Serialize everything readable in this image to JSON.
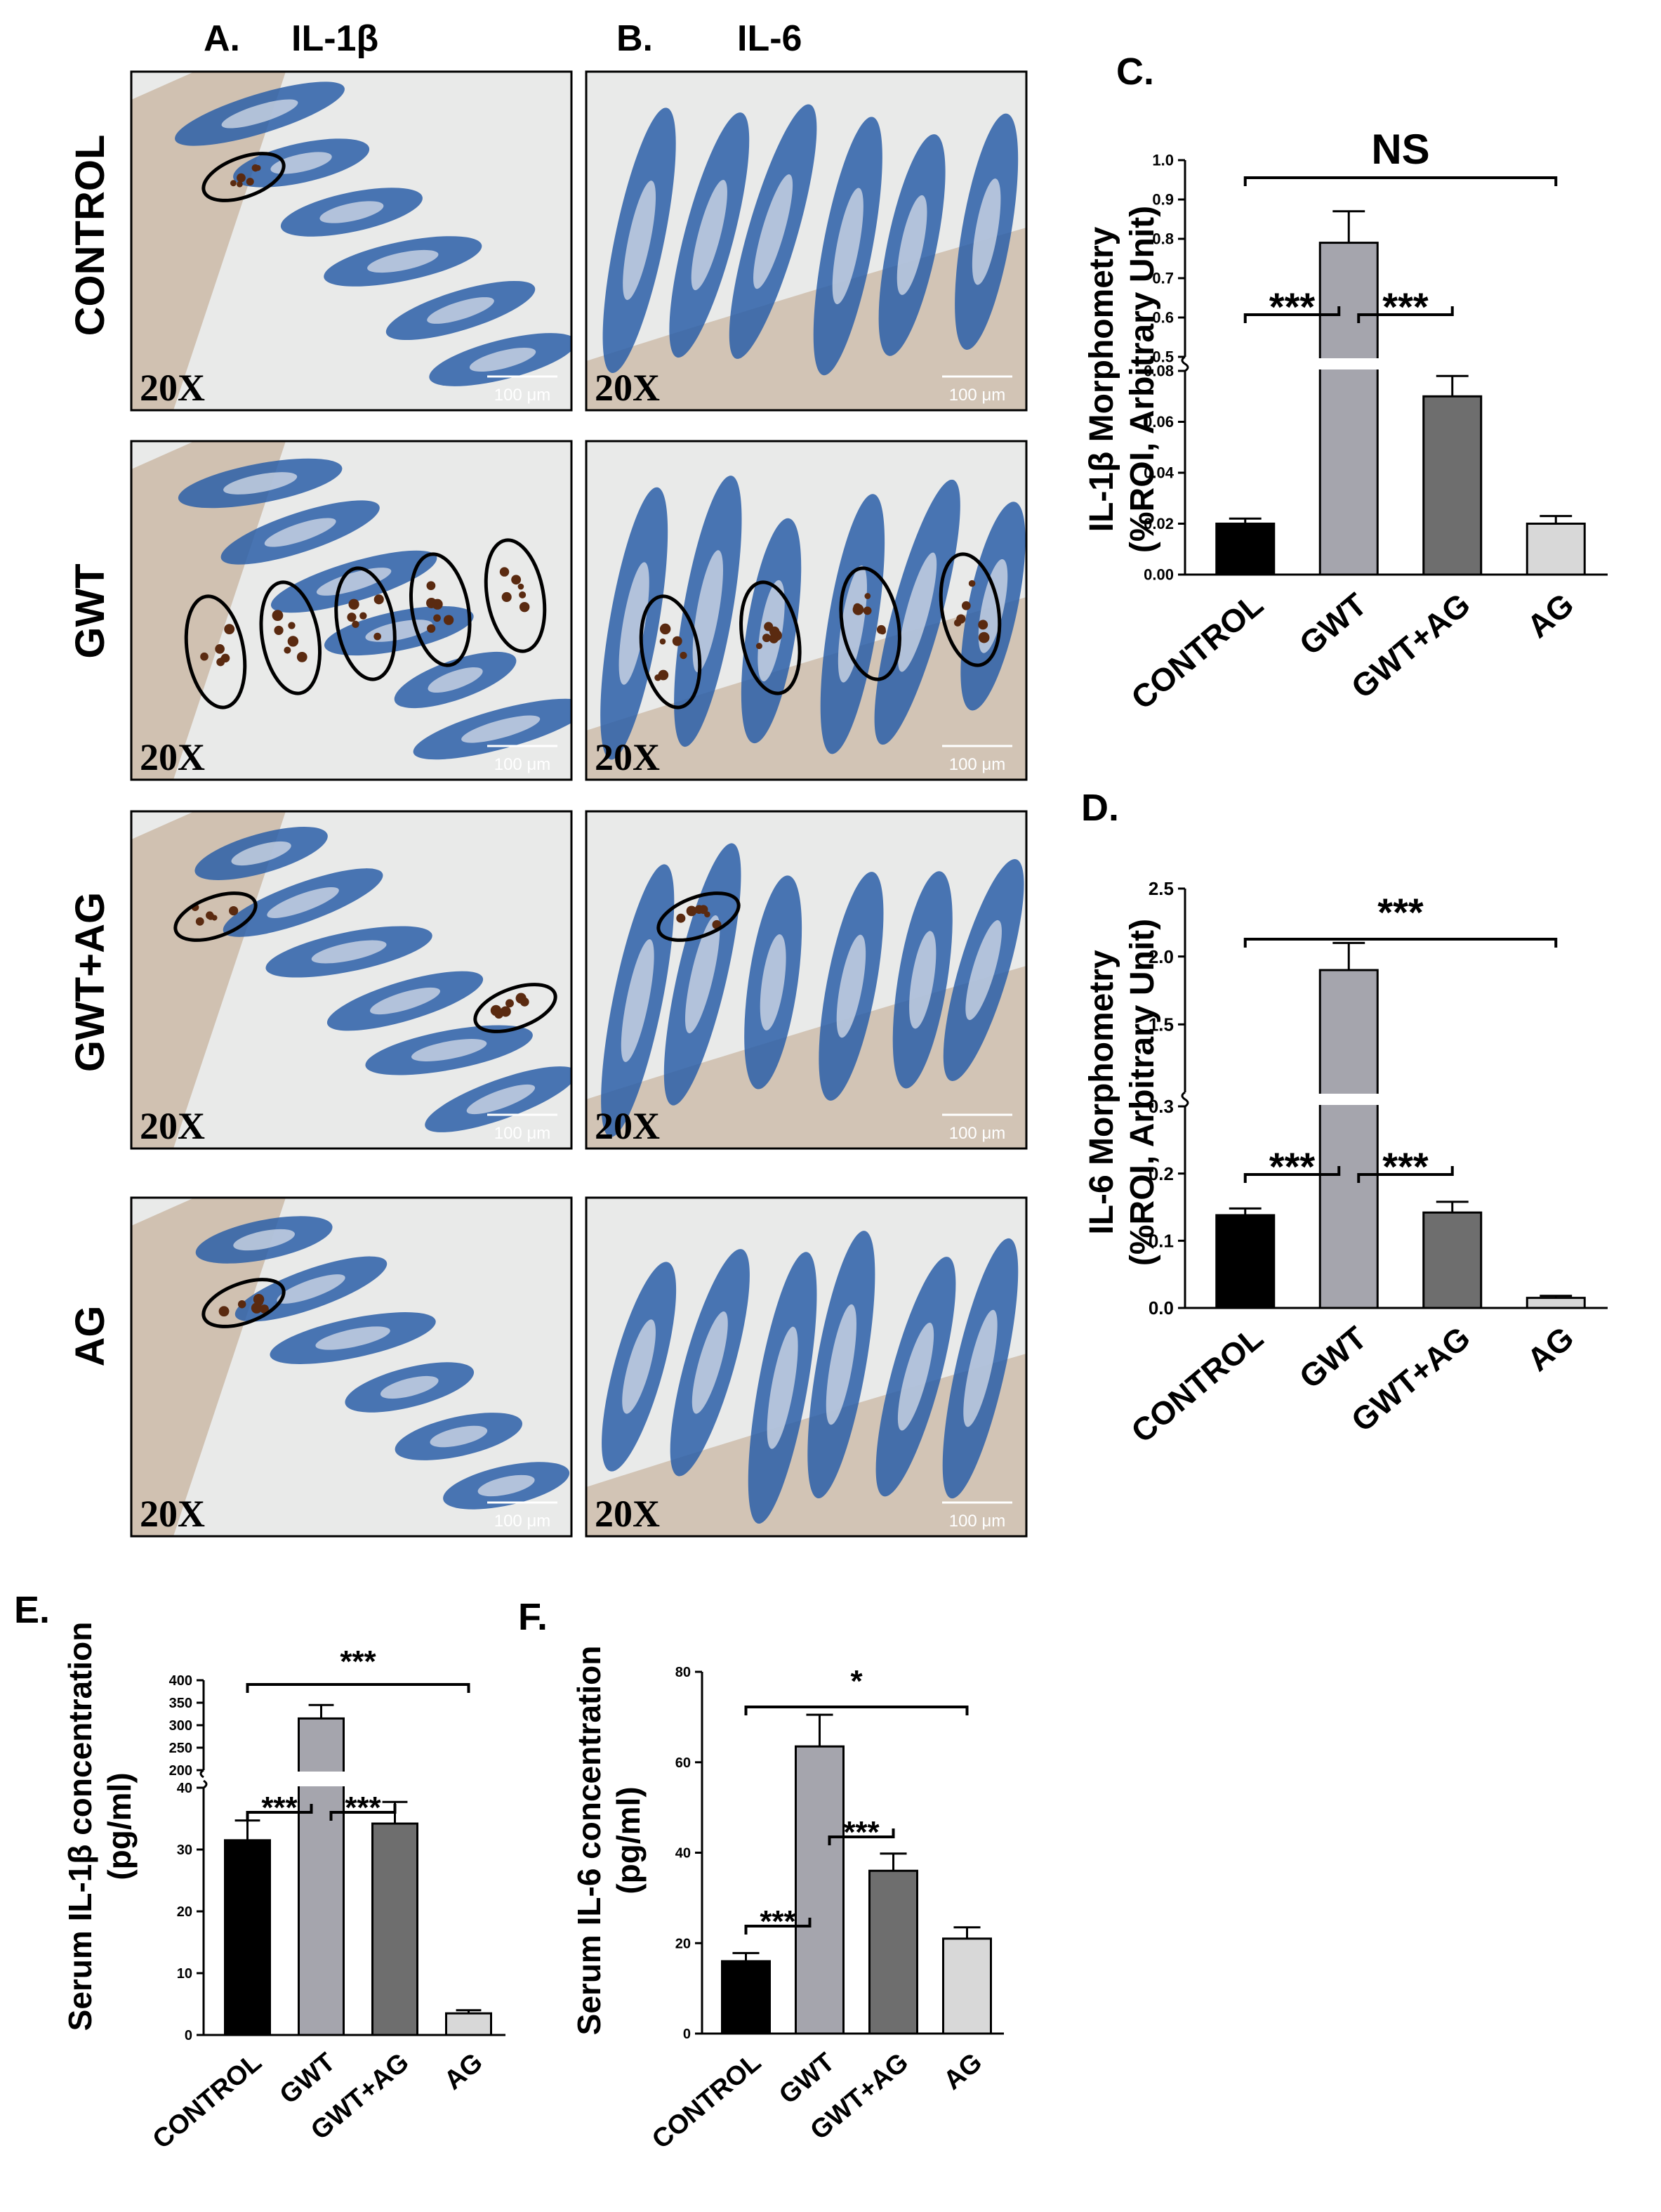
{
  "panels_micro": {
    "heading_a": "A.",
    "heading_a_marker": "IL-1β",
    "heading_b": "B.",
    "heading_b_marker": "IL-6",
    "rows": [
      "CONTROL",
      "GWT",
      "GWT+AG",
      "AG"
    ],
    "magnification": "20X",
    "scale_bar": "100 μm",
    "colors": {
      "tissue": "#2c5fa8",
      "muscle": "#c9b7a3",
      "stain": "#5a2a10",
      "background": "#e9eae9"
    },
    "circled_regions_per_image": [
      [
        1,
        0
      ],
      [
        5,
        4
      ],
      [
        2,
        1
      ],
      [
        1,
        0
      ]
    ]
  },
  "chart_data": [
    {
      "type": "bar",
      "panel": "C.",
      "ylabel_line1": "IL-1β Morphometry",
      "ylabel_line2": "(%ROI, Arbitrary Unit)",
      "categories": [
        "CONTROL",
        "GWT",
        "GWT+AG",
        "AG"
      ],
      "values": [
        0.02,
        0.79,
        0.07,
        0.02
      ],
      "errors": [
        0.002,
        0.08,
        0.008,
        0.003
      ],
      "colors": [
        "#000000",
        "#a5a5ad",
        "#6e6e6e",
        "#d8d8d8"
      ],
      "broken_axis": {
        "lower": [
          0,
          0.08
        ],
        "upper": [
          0.5,
          1.0
        ]
      },
      "lower_ticks": [
        "0.00",
        "0.02",
        "0.04",
        "0.06",
        "0.08"
      ],
      "upper_ticks": [
        "0.5",
        "0.6",
        "0.7",
        "0.8",
        "0.9",
        "1.0"
      ],
      "significance": [
        {
          "from": "CONTROL",
          "to": "AG",
          "label": "NS"
        },
        {
          "from": "CONTROL",
          "to": "GWT",
          "label": "***"
        },
        {
          "from": "GWT",
          "to": "GWT+AG",
          "label": "***"
        }
      ]
    },
    {
      "type": "bar",
      "panel": "D.",
      "ylabel_line1": "IL-6 Morphometry",
      "ylabel_line2": "(%ROI, Arbitrary Unit)",
      "categories": [
        "CONTROL",
        "GWT",
        "GWT+AG",
        "AG"
      ],
      "values": [
        0.138,
        1.9,
        0.142,
        0.015
      ],
      "errors": [
        0.01,
        0.2,
        0.016,
        0.003
      ],
      "colors": [
        "#000000",
        "#a5a5ad",
        "#6e6e6e",
        "#d8d8d8"
      ],
      "broken_axis": {
        "lower": [
          0,
          0.3
        ],
        "upper": [
          1.0,
          2.5
        ]
      },
      "lower_ticks": [
        "0.0",
        "0.1",
        "0.2",
        "0.3"
      ],
      "upper_ticks": [
        "1.5",
        "2.0",
        "2.5"
      ],
      "significance": [
        {
          "from": "CONTROL",
          "to": "AG",
          "label": "***"
        },
        {
          "from": "CONTROL",
          "to": "GWT",
          "label": "***"
        },
        {
          "from": "GWT",
          "to": "GWT+AG",
          "label": "***"
        }
      ]
    },
    {
      "type": "bar",
      "panel": "E.",
      "ylabel_line1": "Serum IL-1β concentration",
      "ylabel_line2": "(pg/ml)",
      "categories": [
        "CONTROL",
        "GWT",
        "GWT+AG",
        "AG"
      ],
      "values": [
        31.5,
        315,
        34.2,
        3.5
      ],
      "errors": [
        3.2,
        30,
        3.5,
        0.5
      ],
      "colors": [
        "#000000",
        "#a5a5ad",
        "#6e6e6e",
        "#d8d8d8"
      ],
      "broken_axis": {
        "lower": [
          0,
          40
        ],
        "upper": [
          200,
          400
        ]
      },
      "lower_ticks": [
        "0",
        "10",
        "20",
        "30",
        "40"
      ],
      "upper_ticks": [
        "200",
        "250",
        "300",
        "350",
        "400"
      ],
      "significance": [
        {
          "from": "CONTROL",
          "to": "AG",
          "label": "***"
        },
        {
          "from": "CONTROL",
          "to": "GWT",
          "label": "***"
        },
        {
          "from": "GWT",
          "to": "GWT+AG",
          "label": "***"
        }
      ]
    },
    {
      "type": "bar",
      "panel": "F.",
      "ylabel_line1": "Serum IL-6 concentration",
      "ylabel_line2": "(pg/ml)",
      "categories": [
        "CONTROL",
        "GWT",
        "GWT+AG",
        "AG"
      ],
      "values": [
        16,
        63.5,
        36,
        21
      ],
      "errors": [
        1.8,
        7,
        3.8,
        2.5
      ],
      "colors": [
        "#000000",
        "#a5a5ad",
        "#6e6e6e",
        "#d8d8d8"
      ],
      "ylim": [
        0,
        80
      ],
      "ticks": [
        "0",
        "20",
        "40",
        "60",
        "80"
      ],
      "significance": [
        {
          "from": "CONTROL",
          "to": "AG",
          "label": "*"
        },
        {
          "from": "CONTROL",
          "to": "GWT",
          "label": "***"
        },
        {
          "from": "GWT",
          "to": "GWT+AG",
          "label": "***"
        }
      ]
    }
  ]
}
